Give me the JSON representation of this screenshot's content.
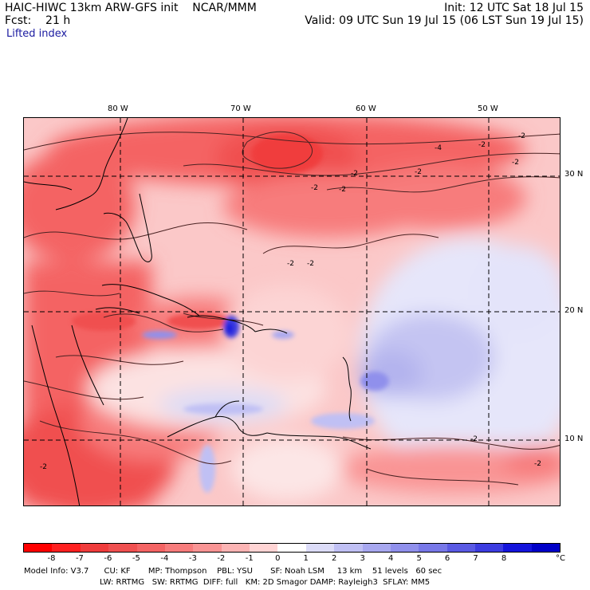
{
  "header": {
    "line1_left": "HAIC-HIWC 13km ARW-GFS init    NCAR/MMM",
    "line1_right": "Init: 12 UTC Sat 18 Jul 15",
    "line2_left": "Fcst:    21 h",
    "line2_right": "Valid: 09 UTC Sun 19 Jul 15 (06 LST Sun 19 Jul 15)",
    "field": "Lifted index"
  },
  "axes": {
    "lon_labels": [
      "80 W",
      "70 W",
      "60 W",
      "50 W"
    ],
    "lat_labels": [
      "30 N",
      "20 N",
      "10 N"
    ]
  },
  "contour_labels": [
    "-2",
    "-4",
    "-2",
    "-2",
    "-2",
    "-2",
    "-2",
    "-2",
    "-2",
    "-2",
    "-2",
    "-2",
    "-2"
  ],
  "colorbar": {
    "labels": [
      "-8",
      "-7",
      "-6",
      "-5",
      "-4",
      "-3",
      "-2",
      "-1",
      "0",
      "1",
      "2",
      "3",
      "4",
      "5",
      "6",
      "7",
      "8"
    ],
    "unit": "°C",
    "colors": [
      "#ff0000",
      "#ff2020",
      "#f03c3c",
      "#f05050",
      "#f46464",
      "#f77c7c",
      "#f99494",
      "#fcb4b4",
      "#ffd4d4",
      "#ffffff",
      "#dcdcf8",
      "#c0c0f4",
      "#a8a8f0",
      "#9090ec",
      "#7878e8",
      "#5a5ae4",
      "#3c3ce0",
      "#1414dc",
      "#0000c8"
    ]
  },
  "footer": {
    "line1": "Model Info: V3.7      CU: KF       MP: Thompson    PBL: YSU       SF: Noah LSM     13 km    51 levels   60 sec",
    "line2": "LW: RRTMG   SW: RRTMG  DIFF: full   KM: 2D Smagor DAMP: Rayleigh3  SFLAY: MM5"
  }
}
